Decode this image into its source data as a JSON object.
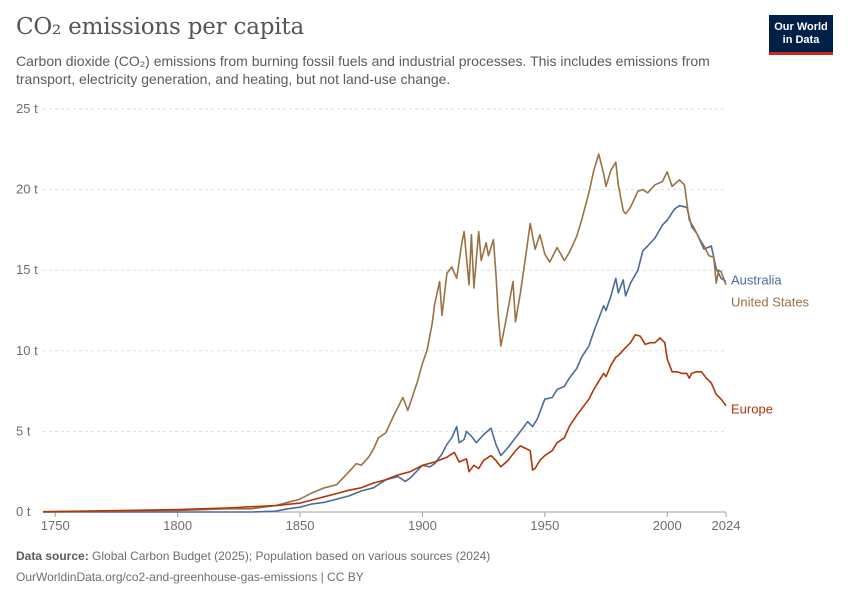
{
  "header": {
    "title": "CO₂ emissions per capita",
    "subtitle": "Carbon dioxide (CO₂) emissions from burning fossil fuels and industrial processes. This includes emissions from transport, electricity generation, and heating, but not land-use change."
  },
  "logo": {
    "line1": "Our World",
    "line2": "in Data"
  },
  "footer": {
    "source_label": "Data source:",
    "source_text": "Global Carbon Budget (2025); Population based on various sources (2024)",
    "url_text": "OurWorldinData.org/co2-and-greenhouse-gas-emissions | CC BY"
  },
  "chart_data": {
    "type": "line",
    "title": "CO₂ emissions per capita",
    "unit": "t",
    "xlim": [
      1745,
      2024
    ],
    "ylim": [
      0,
      25
    ],
    "x_ticks": [
      1750,
      1800,
      1850,
      1900,
      1950,
      2000,
      2024
    ],
    "y_ticks": [
      0,
      5,
      10,
      15,
      20,
      25
    ],
    "y_tick_labels": [
      "0 t",
      "5 t",
      "10 t",
      "15 t",
      "20 t",
      "25 t"
    ],
    "grid": "horizontal dashed",
    "legend": "labels at line ends (right)",
    "series": [
      {
        "name": "Australia",
        "color": "#4c6a9c",
        "points": [
          [
            1745,
            0
          ],
          [
            1830,
            0
          ],
          [
            1840,
            0.05
          ],
          [
            1845,
            0.2
          ],
          [
            1850,
            0.3
          ],
          [
            1855,
            0.5
          ],
          [
            1860,
            0.6
          ],
          [
            1865,
            0.8
          ],
          [
            1870,
            1.0
          ],
          [
            1875,
            1.3
          ],
          [
            1880,
            1.5
          ],
          [
            1885,
            2.0
          ],
          [
            1890,
            2.2
          ],
          [
            1893,
            1.9
          ],
          [
            1895,
            2.1
          ],
          [
            1900,
            2.9
          ],
          [
            1903,
            2.8
          ],
          [
            1905,
            3.0
          ],
          [
            1908,
            3.6
          ],
          [
            1910,
            4.2
          ],
          [
            1912,
            4.6
          ],
          [
            1914,
            5.3
          ],
          [
            1915,
            4.3
          ],
          [
            1917,
            4.5
          ],
          [
            1918,
            5.0
          ],
          [
            1920,
            4.7
          ],
          [
            1922,
            4.3
          ],
          [
            1925,
            4.8
          ],
          [
            1928,
            5.2
          ],
          [
            1930,
            4.2
          ],
          [
            1932,
            3.5
          ],
          [
            1935,
            4.0
          ],
          [
            1938,
            4.6
          ],
          [
            1940,
            5.0
          ],
          [
            1943,
            5.6
          ],
          [
            1945,
            5.3
          ],
          [
            1947,
            5.8
          ],
          [
            1950,
            7.0
          ],
          [
            1953,
            7.1
          ],
          [
            1955,
            7.6
          ],
          [
            1958,
            7.8
          ],
          [
            1960,
            8.3
          ],
          [
            1963,
            8.9
          ],
          [
            1965,
            9.6
          ],
          [
            1968,
            10.3
          ],
          [
            1970,
            11.2
          ],
          [
            1972,
            12.0
          ],
          [
            1974,
            12.8
          ],
          [
            1975,
            12.5
          ],
          [
            1977,
            13.4
          ],
          [
            1979,
            14.5
          ],
          [
            1980,
            13.6
          ],
          [
            1982,
            14.4
          ],
          [
            1983,
            13.4
          ],
          [
            1985,
            14.2
          ],
          [
            1988,
            15.0
          ],
          [
            1990,
            16.2
          ],
          [
            1992,
            16.5
          ],
          [
            1995,
            17.0
          ],
          [
            1998,
            17.8
          ],
          [
            2000,
            18.1
          ],
          [
            2003,
            18.8
          ],
          [
            2005,
            19.0
          ],
          [
            2008,
            18.9
          ],
          [
            2010,
            17.7
          ],
          [
            2012,
            17.3
          ],
          [
            2015,
            16.3
          ],
          [
            2018,
            16.5
          ],
          [
            2020,
            15.1
          ],
          [
            2022,
            14.5
          ],
          [
            2024,
            14.3
          ]
        ]
      },
      {
        "name": "United States",
        "color": "#9a7242",
        "points": [
          [
            1745,
            0
          ],
          [
            1800,
            0.1
          ],
          [
            1820,
            0.2
          ],
          [
            1830,
            0.2
          ],
          [
            1840,
            0.4
          ],
          [
            1845,
            0.6
          ],
          [
            1850,
            0.8
          ],
          [
            1855,
            1.2
          ],
          [
            1860,
            1.5
          ],
          [
            1865,
            1.7
          ],
          [
            1870,
            2.5
          ],
          [
            1873,
            3.0
          ],
          [
            1875,
            2.9
          ],
          [
            1878,
            3.4
          ],
          [
            1880,
            3.9
          ],
          [
            1882,
            4.6
          ],
          [
            1885,
            4.9
          ],
          [
            1888,
            5.9
          ],
          [
            1890,
            6.5
          ],
          [
            1892,
            7.1
          ],
          [
            1894,
            6.3
          ],
          [
            1896,
            7.2
          ],
          [
            1898,
            8.1
          ],
          [
            1900,
            9.2
          ],
          [
            1902,
            10.1
          ],
          [
            1904,
            11.7
          ],
          [
            1905,
            12.9
          ],
          [
            1907,
            14.3
          ],
          [
            1908,
            12.2
          ],
          [
            1910,
            14.8
          ],
          [
            1912,
            15.2
          ],
          [
            1914,
            14.5
          ],
          [
            1916,
            16.6
          ],
          [
            1917,
            17.4
          ],
          [
            1919,
            14.1
          ],
          [
            1920,
            17.2
          ],
          [
            1921,
            13.9
          ],
          [
            1923,
            17.4
          ],
          [
            1924,
            15.6
          ],
          [
            1926,
            16.7
          ],
          [
            1927,
            15.9
          ],
          [
            1929,
            16.9
          ],
          [
            1930,
            14.8
          ],
          [
            1931,
            12.2
          ],
          [
            1932,
            10.3
          ],
          [
            1933,
            11.0
          ],
          [
            1935,
            12.6
          ],
          [
            1937,
            14.3
          ],
          [
            1938,
            11.8
          ],
          [
            1940,
            13.6
          ],
          [
            1942,
            15.7
          ],
          [
            1944,
            17.9
          ],
          [
            1946,
            16.3
          ],
          [
            1948,
            17.2
          ],
          [
            1950,
            16.0
          ],
          [
            1952,
            15.5
          ],
          [
            1955,
            16.4
          ],
          [
            1958,
            15.6
          ],
          [
            1960,
            16.1
          ],
          [
            1963,
            17.1
          ],
          [
            1965,
            18.1
          ],
          [
            1968,
            19.8
          ],
          [
            1970,
            21.2
          ],
          [
            1972,
            22.2
          ],
          [
            1974,
            21.0
          ],
          [
            1975,
            20.2
          ],
          [
            1977,
            21.2
          ],
          [
            1979,
            21.7
          ],
          [
            1980,
            20.3
          ],
          [
            1982,
            18.7
          ],
          [
            1983,
            18.5
          ],
          [
            1985,
            18.9
          ],
          [
            1988,
            19.9
          ],
          [
            1990,
            20.0
          ],
          [
            1992,
            19.8
          ],
          [
            1995,
            20.3
          ],
          [
            1998,
            20.5
          ],
          [
            2000,
            21.1
          ],
          [
            2002,
            20.2
          ],
          [
            2005,
            20.6
          ],
          [
            2007,
            20.3
          ],
          [
            2009,
            18.1
          ],
          [
            2011,
            17.6
          ],
          [
            2013,
            17.0
          ],
          [
            2015,
            16.5
          ],
          [
            2017,
            15.9
          ],
          [
            2019,
            15.8
          ],
          [
            2020,
            14.2
          ],
          [
            2021,
            15.0
          ],
          [
            2022,
            14.9
          ],
          [
            2024,
            14.1
          ]
        ]
      },
      {
        "name": "Europe",
        "color": "#b13507",
        "points": [
          [
            1745,
            0.02
          ],
          [
            1760,
            0.05
          ],
          [
            1780,
            0.1
          ],
          [
            1800,
            0.15
          ],
          [
            1820,
            0.25
          ],
          [
            1840,
            0.4
          ],
          [
            1850,
            0.55
          ],
          [
            1855,
            0.75
          ],
          [
            1860,
            0.95
          ],
          [
            1865,
            1.15
          ],
          [
            1870,
            1.35
          ],
          [
            1875,
            1.5
          ],
          [
            1880,
            1.8
          ],
          [
            1885,
            2.0
          ],
          [
            1890,
            2.3
          ],
          [
            1895,
            2.5
          ],
          [
            1900,
            2.9
          ],
          [
            1905,
            3.1
          ],
          [
            1910,
            3.4
          ],
          [
            1913,
            3.7
          ],
          [
            1915,
            3.1
          ],
          [
            1918,
            3.3
          ],
          [
            1919,
            2.5
          ],
          [
            1921,
            2.9
          ],
          [
            1923,
            2.7
          ],
          [
            1925,
            3.2
          ],
          [
            1928,
            3.5
          ],
          [
            1930,
            3.2
          ],
          [
            1932,
            2.8
          ],
          [
            1935,
            3.2
          ],
          [
            1938,
            3.8
          ],
          [
            1940,
            4.1
          ],
          [
            1944,
            3.8
          ],
          [
            1945,
            2.6
          ],
          [
            1946,
            2.7
          ],
          [
            1948,
            3.2
          ],
          [
            1950,
            3.5
          ],
          [
            1953,
            3.8
          ],
          [
            1955,
            4.3
          ],
          [
            1958,
            4.6
          ],
          [
            1960,
            5.3
          ],
          [
            1963,
            6.0
          ],
          [
            1965,
            6.4
          ],
          [
            1968,
            7.0
          ],
          [
            1970,
            7.6
          ],
          [
            1972,
            8.1
          ],
          [
            1974,
            8.6
          ],
          [
            1975,
            8.4
          ],
          [
            1977,
            9.1
          ],
          [
            1979,
            9.6
          ],
          [
            1980,
            9.7
          ],
          [
            1983,
            10.2
          ],
          [
            1985,
            10.5
          ],
          [
            1987,
            11.0
          ],
          [
            1989,
            10.9
          ],
          [
            1991,
            10.4
          ],
          [
            1993,
            10.5
          ],
          [
            1995,
            10.5
          ],
          [
            1997,
            10.8
          ],
          [
            1999,
            10.5
          ],
          [
            2000,
            9.5
          ],
          [
            2002,
            8.7
          ],
          [
            2004,
            8.7
          ],
          [
            2006,
            8.6
          ],
          [
            2008,
            8.6
          ],
          [
            2009,
            8.3
          ],
          [
            2010,
            8.6
          ],
          [
            2012,
            8.7
          ],
          [
            2014,
            8.7
          ],
          [
            2016,
            8.3
          ],
          [
            2018,
            8.0
          ],
          [
            2020,
            7.3
          ],
          [
            2022,
            7.0
          ],
          [
            2024,
            6.6
          ]
        ]
      }
    ]
  }
}
